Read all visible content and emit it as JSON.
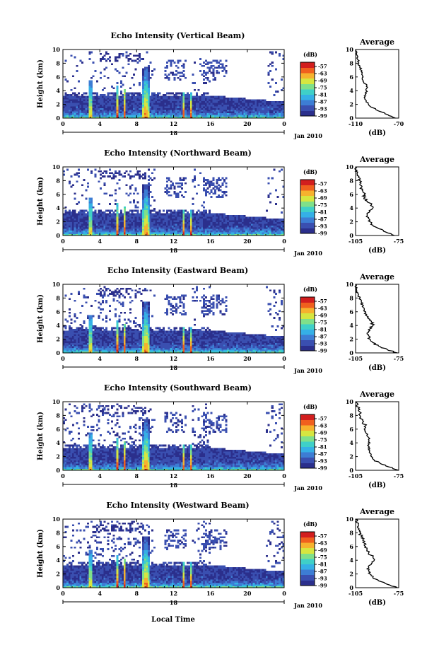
{
  "figure": {
    "xlabel": "Local Time",
    "ylabel": "Height (km)",
    "date_label": "Jan 2010",
    "avg_title": "Average",
    "avg_xlabel": "(dB)",
    "colorbar_unit": "(dB)"
  },
  "colors": {
    "colormap": [
      "#2b2f8c",
      "#3a4fb0",
      "#3d7dd4",
      "#35b0e6",
      "#3fd0c8",
      "#7fe08a",
      "#d6e640",
      "#f6b22e",
      "#f0601e",
      "#d21e1e"
    ],
    "background": "#ffffff",
    "no_echo": "#ffffff"
  },
  "chart_data": [
    {
      "type": "heatmap",
      "title": "Echo Intensity (Vertical Beam)",
      "xlabel": "Local Time",
      "ylabel": "Height (km)",
      "xlim": [
        0,
        24
      ],
      "ylim": [
        0,
        10
      ],
      "xticks": [
        "0",
        "4",
        "8",
        "12",
        "16",
        "20",
        "0"
      ],
      "yticks": [
        "0",
        "2",
        "4",
        "6",
        "8",
        "10"
      ],
      "day_label": "18",
      "date_label": "Jan 2010",
      "colorbar": {
        "unit": "(dB)",
        "labels": [
          "-57",
          "-63",
          "-69",
          "-75",
          "-81",
          "-87",
          "-93",
          "-99"
        ],
        "range": [
          -99,
          -57
        ]
      },
      "average_profile": {
        "title": "Average",
        "xlabel": "(dB)",
        "xticks": [
          "-110",
          "-70"
        ],
        "xlim": [
          -110,
          -70
        ],
        "height": [
          0,
          0.5,
          1,
          1.5,
          2,
          2.5,
          3,
          3.5,
          4,
          4.5,
          5,
          5.5,
          6,
          6.5,
          7,
          7.5,
          8,
          8.5,
          9,
          9.5,
          10
        ],
        "values": [
          -73,
          -80,
          -88,
          -94,
          -98,
          -100,
          -102,
          -101,
          -100,
          -99,
          -101,
          -103,
          -103,
          -104,
          -105,
          -106,
          -107,
          -108,
          -108,
          -109,
          -110
        ]
      }
    },
    {
      "type": "heatmap",
      "title": "Echo Intensity (Northward Beam)",
      "xlabel": "Local Time",
      "ylabel": "Height (km)",
      "xlim": [
        0,
        24
      ],
      "ylim": [
        0,
        10
      ],
      "xticks": [
        "0",
        "4",
        "8",
        "12",
        "16",
        "20",
        "0"
      ],
      "yticks": [
        "0",
        "2",
        "4",
        "6",
        "8",
        "10"
      ],
      "day_label": "18",
      "date_label": "Jan 2010",
      "colorbar": {
        "unit": "(dB)",
        "labels": [
          "-57",
          "-63",
          "-69",
          "-75",
          "-81",
          "-87",
          "-93",
          "-99"
        ],
        "range": [
          -99,
          -57
        ]
      },
      "average_profile": {
        "title": "Average",
        "xlabel": "(dB)",
        "xticks": [
          "-105",
          "-75"
        ],
        "xlim": [
          -105,
          -75
        ],
        "height": [
          0,
          0.5,
          1,
          1.5,
          2,
          2.5,
          3,
          3.5,
          4,
          4.5,
          5,
          5.5,
          6,
          6.5,
          7,
          7.5,
          8,
          8.5,
          9,
          9.5,
          10
        ],
        "values": [
          -78,
          -84,
          -89,
          -93,
          -95,
          -96,
          -97,
          -95,
          -93,
          -94,
          -97,
          -99,
          -99,
          -100,
          -101,
          -102,
          -102,
          -103,
          -104,
          -104,
          -105
        ]
      }
    },
    {
      "type": "heatmap",
      "title": "Echo Intensity (Eastward Beam)",
      "xlabel": "Local Time",
      "ylabel": "Height (km)",
      "xlim": [
        0,
        24
      ],
      "ylim": [
        0,
        10
      ],
      "xticks": [
        "0",
        "4",
        "8",
        "12",
        "16",
        "20",
        "0"
      ],
      "yticks": [
        "0",
        "2",
        "4",
        "6",
        "8",
        "10"
      ],
      "day_label": "18",
      "date_label": "Jan 2010",
      "colorbar": {
        "unit": "(dB)",
        "labels": [
          "-57",
          "-63",
          "-69",
          "-75",
          "-81",
          "-87",
          "-93",
          "-99"
        ],
        "range": [
          -99,
          -57
        ]
      },
      "average_profile": {
        "title": "Average",
        "xlabel": "(dB)",
        "xticks": [
          "-105",
          "-75"
        ],
        "xlim": [
          -105,
          -75
        ],
        "height": [
          0,
          0.5,
          1,
          1.5,
          2,
          2.5,
          3,
          3.5,
          4,
          4.5,
          5,
          5.5,
          6,
          6.5,
          7,
          7.5,
          8,
          8.5,
          9,
          9.5,
          10
        ],
        "values": [
          -76,
          -83,
          -89,
          -93,
          -95,
          -96,
          -96,
          -95,
          -93,
          -94,
          -96,
          -98,
          -98,
          -99,
          -100,
          -101,
          -102,
          -103,
          -104,
          -104,
          -105
        ]
      }
    },
    {
      "type": "heatmap",
      "title": "Echo Intensity (Southward Beam)",
      "xlabel": "Local Time",
      "ylabel": "Height (km)",
      "xlim": [
        0,
        24
      ],
      "ylim": [
        0,
        10
      ],
      "xticks": [
        "0",
        "4",
        "8",
        "12",
        "16",
        "20",
        "0"
      ],
      "yticks": [
        "0",
        "2",
        "4",
        "6",
        "8",
        "10"
      ],
      "day_label": "18",
      "date_label": "Jan 2010",
      "colorbar": {
        "unit": "(dB)",
        "labels": [
          "-57",
          "-63",
          "-69",
          "-75",
          "-81",
          "-87",
          "-93",
          "-99"
        ],
        "range": [
          -99,
          -57
        ]
      },
      "average_profile": {
        "title": "Average",
        "xlabel": "(dB)",
        "xticks": [
          "-105",
          "-75"
        ],
        "xlim": [
          -105,
          -75
        ],
        "height": [
          0,
          0.5,
          1,
          1.5,
          2,
          2.5,
          3,
          3.5,
          4,
          4.5,
          5,
          5.5,
          6,
          6.5,
          7,
          7.5,
          8,
          8.5,
          9,
          9.5,
          10
        ],
        "values": [
          -75,
          -82,
          -88,
          -92,
          -94,
          -95,
          -96,
          -96,
          -95,
          -96,
          -97,
          -98,
          -99,
          -98,
          -100,
          -101,
          -102,
          -102,
          -103,
          -104,
          -105
        ]
      }
    },
    {
      "type": "heatmap",
      "title": "Echo Intensity (Westward Beam)",
      "xlabel": "Local Time",
      "ylabel": "Height (km)",
      "xlim": [
        0,
        24
      ],
      "ylim": [
        0,
        10
      ],
      "xticks": [
        "0",
        "4",
        "8",
        "12",
        "16",
        "20",
        "0"
      ],
      "yticks": [
        "0",
        "2",
        "4",
        "6",
        "8",
        "10"
      ],
      "day_label": "18",
      "date_label": "Jan 2010",
      "colorbar": {
        "unit": "(dB)",
        "labels": [
          "-57",
          "-63",
          "-69",
          "-75",
          "-81",
          "-87",
          "-93",
          "-99"
        ],
        "range": [
          -99,
          -57
        ]
      },
      "average_profile": {
        "title": "Average",
        "xlabel": "(dB)",
        "xticks": [
          "-105",
          "-75"
        ],
        "xlim": [
          -105,
          -75
        ],
        "height": [
          0,
          0.5,
          1,
          1.5,
          2,
          2.5,
          3,
          3.5,
          4,
          4.5,
          5,
          5.5,
          6,
          6.5,
          7,
          7.5,
          8,
          8.5,
          9,
          9.5,
          10
        ],
        "values": [
          -76,
          -83,
          -89,
          -93,
          -95,
          -96,
          -96,
          -94,
          -92,
          -93,
          -96,
          -97,
          -98,
          -99,
          -100,
          -101,
          -102,
          -103,
          -103,
          -104,
          -105
        ]
      }
    }
  ]
}
